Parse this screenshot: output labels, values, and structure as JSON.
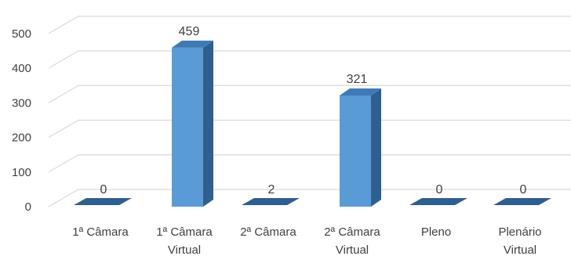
{
  "chart_data": {
    "type": "bar",
    "style": "3d-column",
    "categories": [
      [
        "1ª Câmara"
      ],
      [
        "1ª Câmara",
        "Virtual"
      ],
      [
        "2ª Câmara"
      ],
      [
        "2ª Câmara",
        "Virtual"
      ],
      [
        "Pleno"
      ],
      [
        "Plenário",
        "Virtual"
      ]
    ],
    "values": [
      0,
      459,
      2,
      321,
      0,
      0
    ],
    "data_labels": [
      "0",
      "459",
      "2",
      "321",
      "0",
      "0"
    ],
    "yticks": [
      "0",
      "100",
      "200",
      "300",
      "400",
      "500"
    ],
    "ylim": [
      0,
      500
    ],
    "grid": true,
    "legend": "none",
    "colors": {
      "bar_front": "#5b9bd5",
      "bar_side": "#2e5f8f",
      "bar_top": "#3f7ab5",
      "grid": "#d9d9d9",
      "text": "#404040"
    }
  }
}
